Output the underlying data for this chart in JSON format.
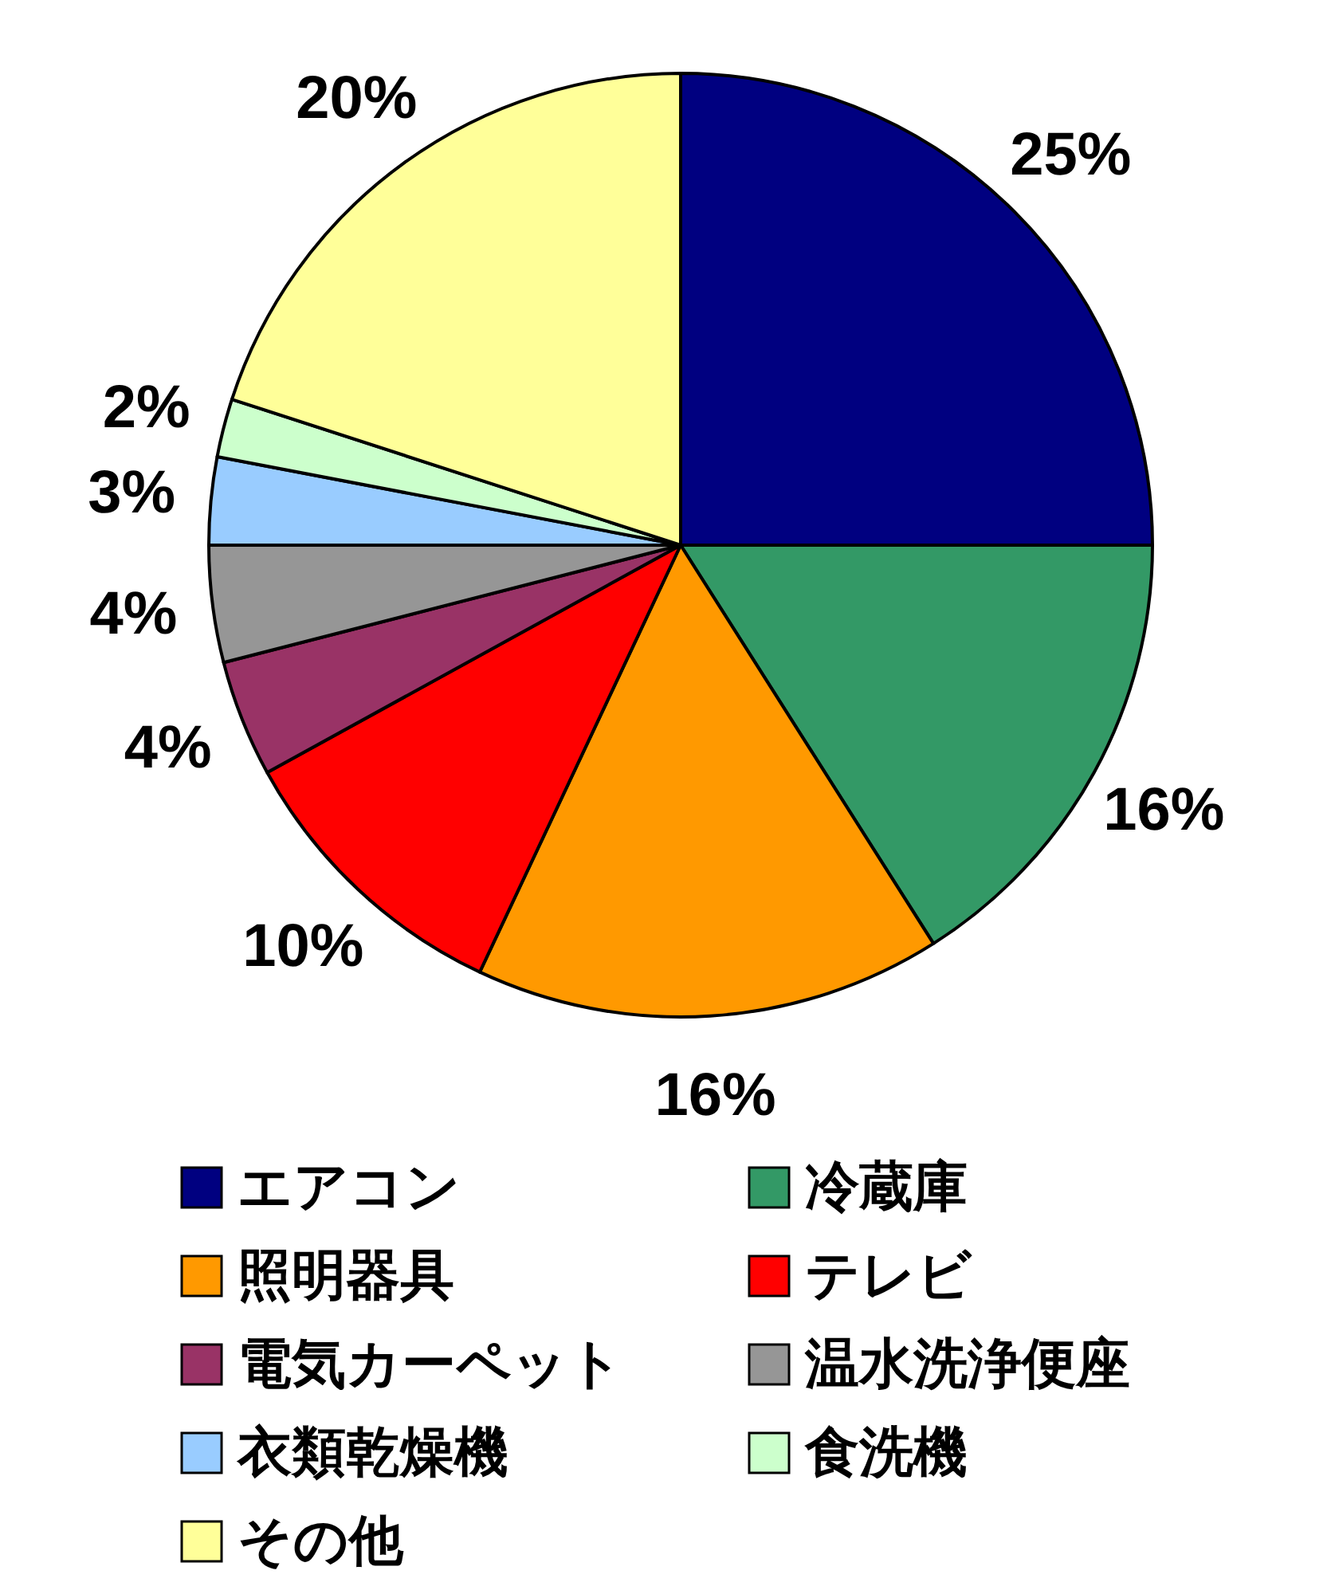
{
  "chart_data": {
    "type": "pie",
    "categories": [
      "エアコン",
      "冷蔵庫",
      "照明器具",
      "テレビ",
      "電気カーペット",
      "温水洗浄便座",
      "衣類乾燥機",
      "食洗機",
      "その他"
    ],
    "values": [
      25,
      16,
      16,
      10,
      4,
      4,
      3,
      2,
      20
    ],
    "colors": [
      "#000080",
      "#339966",
      "#ff9900",
      "#ff0000",
      "#993366",
      "#969696",
      "#99ccff",
      "#ccffcc",
      "#ffff99"
    ],
    "value_labels": [
      "25%",
      "16%",
      "16%",
      "10%",
      "4%",
      "4%",
      "3%",
      "2%",
      "20%"
    ],
    "legend": "bottom"
  }
}
